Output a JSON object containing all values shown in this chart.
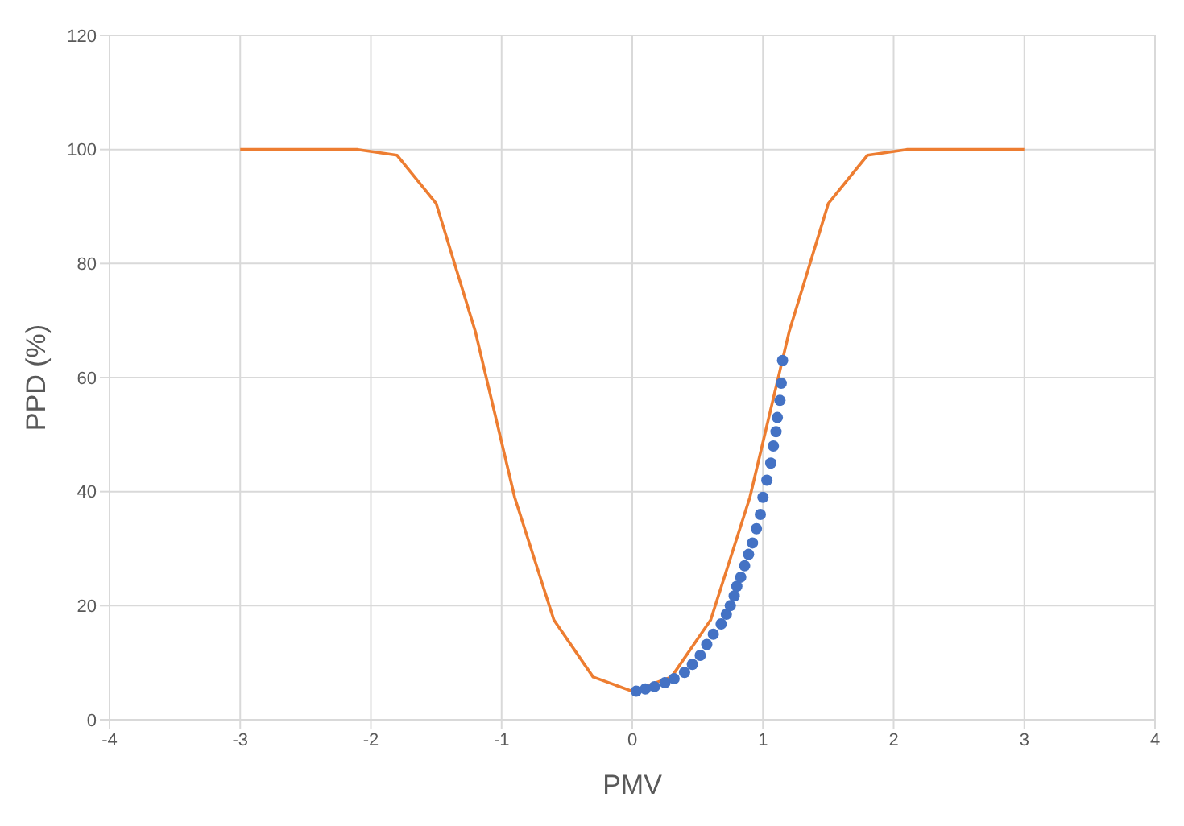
{
  "chart_data": {
    "type": "line",
    "xlabel": "PMV",
    "ylabel": "PPD (%)",
    "xlim": [
      -4,
      4
    ],
    "xticks": [
      -4,
      -3,
      -2,
      -1,
      0,
      1,
      2,
      3,
      4
    ],
    "ylim": [
      0,
      120
    ],
    "yticks": [
      0,
      20,
      40,
      60,
      80,
      100,
      120
    ],
    "grid": true,
    "legend": false,
    "series": [
      {
        "color": "#ed7d31",
        "marker": "none",
        "x": [
          -3,
          -2.1,
          -1.8,
          -1.5,
          -1.2,
          -0.9,
          -0.6,
          -0.3,
          0,
          0.3,
          0.6,
          0.9,
          1.2,
          1.5,
          1.8,
          2.1,
          3
        ],
        "values": [
          100,
          100,
          99,
          90.5,
          68,
          39,
          17.5,
          7.5,
          5,
          7.5,
          17.5,
          39,
          68,
          90.5,
          99,
          100,
          100
        ]
      },
      {
        "type": "scatter",
        "color": "#4472c4",
        "marker": "circle",
        "x": [
          0.03,
          0.1,
          0.17,
          0.25,
          0.32,
          0.4,
          0.46,
          0.52,
          0.57,
          0.62,
          0.68,
          0.72,
          0.75,
          0.78,
          0.8,
          0.83,
          0.86,
          0.89,
          0.92,
          0.95,
          0.98,
          1.0,
          1.03,
          1.06,
          1.08,
          1.1,
          1.11,
          1.13,
          1.14,
          1.15
        ],
        "values": [
          5,
          5.4,
          5.8,
          6.5,
          7.2,
          8.3,
          9.7,
          11.3,
          13.2,
          15,
          16.8,
          18.5,
          20,
          21.7,
          23.4,
          25,
          27,
          29,
          31,
          33.5,
          36,
          39,
          42,
          45,
          48,
          50.5,
          53,
          56,
          59,
          63
        ]
      }
    ]
  }
}
